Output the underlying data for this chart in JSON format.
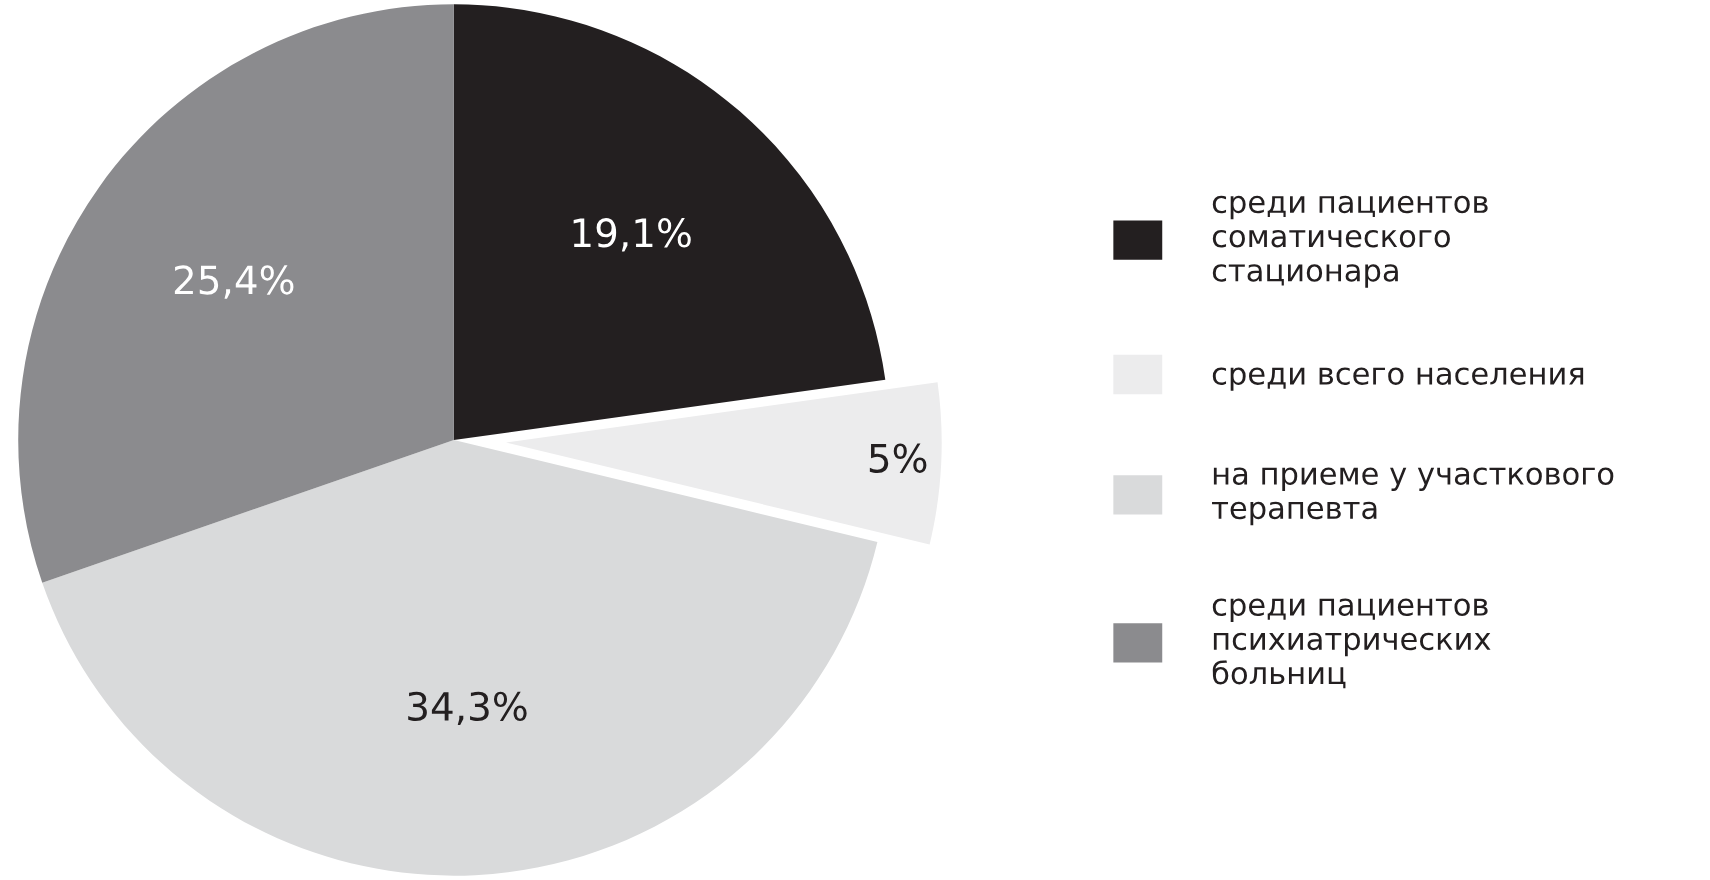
{
  "chart_data": {
    "type": "pie",
    "categories": [
      "среди пациентов\nсоматического\nстационара",
      "среди всего населения",
      "на приеме у участкового\nтерапевта",
      "среди пациентов\nпсихиатрических\nбольниц"
    ],
    "values": [
      19.1,
      5,
      34.3,
      25.4
    ],
    "value_labels": [
      "19,1%",
      "5%",
      "34,3%",
      "25,4%"
    ],
    "colors": [
      "#231f20",
      "#ececed",
      "#d9dadb",
      "#8b8b8e"
    ],
    "legend": "right"
  }
}
